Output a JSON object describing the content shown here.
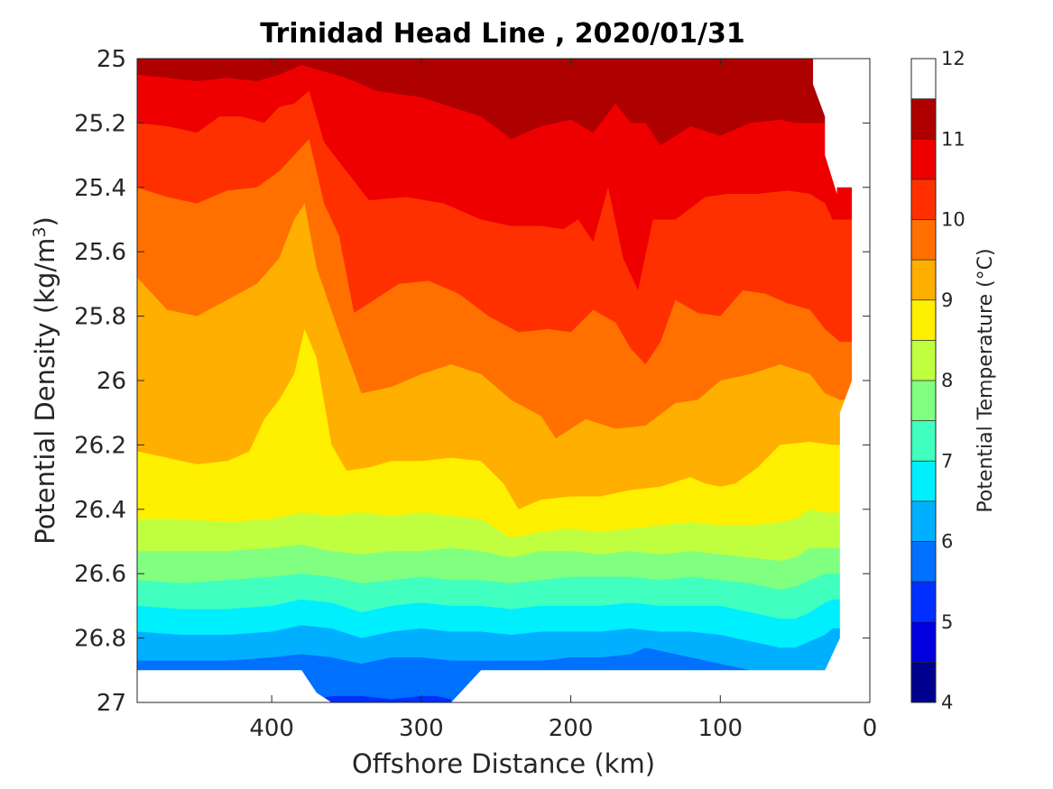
{
  "chart_data": {
    "type": "contourf",
    "title": "Trinidad Head Line , 2020/01/31",
    "xlabel": "Offshore Distance (km)",
    "ylabel_prefix": "Potential Density (kg/m",
    "ylabel_sup": "3",
    "ylabel_suffix": ")",
    "colorbar_label": "Potential Temperature (°C)",
    "xlim": [
      490,
      0
    ],
    "ylim": [
      25,
      27
    ],
    "y_reversed": true,
    "x_reversed": true,
    "xticks": [
      400,
      300,
      200,
      100,
      0
    ],
    "xtick_labels": [
      "400",
      "300",
      "200",
      "100",
      "0"
    ],
    "yticks": [
      25,
      25.2,
      25.4,
      25.6,
      25.8,
      26,
      26.2,
      26.4,
      26.6,
      26.8,
      27
    ],
    "ytick_labels": [
      "25",
      "25.2",
      "25.4",
      "25.6",
      "25.8",
      "26",
      "26.2",
      "26.4",
      "26.6",
      "26.8",
      "27"
    ],
    "colorbar_ticks": [
      4,
      5,
      6,
      7,
      8,
      9,
      10,
      11,
      12
    ],
    "colorbar_tick_labels": [
      "4",
      "5",
      "6",
      "7",
      "8",
      "9",
      "10",
      "11",
      "12"
    ],
    "levels": [
      4,
      4.5,
      5,
      5.5,
      6,
      6.5,
      7,
      7.5,
      8,
      8.5,
      9,
      9.5,
      10,
      10.5,
      11,
      11.5,
      12
    ],
    "colors": [
      "#00008f",
      "#0000df",
      "#0030ff",
      "#0070ff",
      "#00b0ff",
      "#00efff",
      "#40ffbf",
      "#80ff80",
      "#bfff40",
      "#ffef00",
      "#ffaf00",
      "#ff7000",
      "#ff3000",
      "#ef0000",
      "#af0000"
    ],
    "grid": false,
    "isotherms": [
      {
        "level": 11,
        "x": [
          490,
          460,
          440,
          420,
          400,
          380,
          360,
          340,
          320,
          300,
          280,
          260,
          240,
          220,
          200,
          180,
          160,
          140,
          120,
          110,
          100,
          80,
          60,
          40
        ],
        "y": [
          25.02,
          25.02,
          25.01,
          25.02,
          25.01,
          25.02,
          25.0,
          25.02,
          25.01,
          25.02,
          25.01,
          25.02,
          25.02,
          25.01,
          25.02,
          25.01,
          25.02,
          25.01,
          25.02,
          25.07,
          25.03,
          25.01,
          25.02,
          25.01
        ]
      },
      {
        "level": 10.5,
        "x": [
          490,
          470,
          450,
          430,
          410,
          395,
          380,
          365,
          350,
          330,
          300,
          260,
          240,
          220,
          200,
          185,
          170,
          160,
          150,
          140,
          120,
          100,
          80,
          60,
          50,
          40,
          35
        ],
        "y": [
          25.05,
          25.06,
          25.07,
          25.06,
          25.07,
          25.05,
          25.02,
          25.04,
          25.06,
          25.1,
          25.12,
          25.18,
          25.25,
          25.21,
          25.19,
          25.23,
          25.14,
          25.2,
          25.2,
          25.27,
          25.21,
          25.24,
          25.2,
          25.19,
          25.2,
          25.2,
          25.2
        ]
      },
      {
        "level": 10,
        "x": [
          490,
          470,
          450,
          435,
          420,
          405,
          395,
          385,
          375,
          365,
          350,
          335,
          310,
          285,
          260,
          240,
          220,
          205,
          195,
          185,
          175,
          165,
          155,
          145,
          130,
          110,
          95,
          75,
          55,
          40,
          30,
          25
        ],
        "y": [
          25.2,
          25.21,
          25.23,
          25.18,
          25.18,
          25.2,
          25.15,
          25.14,
          25.1,
          25.26,
          25.35,
          25.44,
          25.43,
          25.45,
          25.5,
          25.52,
          25.52,
          25.53,
          25.5,
          25.57,
          25.4,
          25.62,
          25.72,
          25.5,
          25.5,
          25.43,
          25.42,
          25.42,
          25.41,
          25.42,
          25.45,
          25.5
        ]
      },
      {
        "level": 9.5,
        "x": [
          490,
          470,
          450,
          430,
          410,
          395,
          385,
          375,
          365,
          355,
          345,
          335,
          315,
          295,
          275,
          255,
          235,
          215,
          200,
          185,
          170,
          160,
          150,
          140,
          130,
          115,
          100,
          85,
          70,
          55,
          40,
          30,
          20
        ],
        "y": [
          25.4,
          25.43,
          25.45,
          25.41,
          25.4,
          25.35,
          25.3,
          25.25,
          25.45,
          25.55,
          25.79,
          25.76,
          25.7,
          25.69,
          25.73,
          25.8,
          25.85,
          25.84,
          25.85,
          25.78,
          25.82,
          25.9,
          25.95,
          25.88,
          25.75,
          25.79,
          25.8,
          25.72,
          25.73,
          25.76,
          25.78,
          25.84,
          25.88
        ]
      },
      {
        "level": 9,
        "x": [
          490,
          470,
          450,
          430,
          410,
          395,
          385,
          378,
          370,
          355,
          340,
          320,
          300,
          280,
          260,
          240,
          220,
          210,
          190,
          170,
          150,
          130,
          115,
          100,
          80,
          60,
          40,
          30,
          20
        ],
        "y": [
          25.68,
          25.78,
          25.8,
          25.75,
          25.7,
          25.62,
          25.5,
          25.45,
          25.65,
          25.85,
          26.04,
          26.02,
          25.98,
          25.95,
          25.98,
          26.06,
          26.11,
          26.18,
          26.12,
          26.15,
          26.14,
          26.07,
          26.06,
          26.0,
          25.98,
          25.95,
          25.98,
          26.04,
          26.06
        ]
      },
      {
        "level": 8.5,
        "x": [
          490,
          470,
          450,
          430,
          415,
          405,
          395,
          385,
          378,
          370,
          360,
          350,
          335,
          320,
          300,
          280,
          260,
          245,
          235,
          220,
          200,
          180,
          160,
          140,
          120,
          110,
          100,
          90,
          75,
          60,
          40,
          25
        ],
        "y": [
          26.22,
          26.24,
          26.26,
          26.25,
          26.22,
          26.12,
          26.06,
          25.98,
          25.84,
          25.93,
          26.2,
          26.28,
          26.27,
          26.25,
          26.25,
          26.24,
          26.25,
          26.32,
          26.4,
          26.37,
          26.36,
          26.36,
          26.34,
          26.33,
          26.3,
          26.32,
          26.33,
          26.32,
          26.27,
          26.2,
          26.19,
          26.2
        ]
      },
      {
        "level": 8,
        "x": [
          490,
          460,
          430,
          400,
          380,
          360,
          340,
          320,
          300,
          280,
          260,
          240,
          220,
          200,
          180,
          160,
          140,
          120,
          100,
          80,
          60,
          50,
          40,
          30,
          25
        ],
        "y": [
          26.43,
          26.43,
          26.44,
          26.43,
          26.41,
          26.42,
          26.41,
          26.42,
          26.41,
          26.42,
          26.43,
          26.49,
          26.47,
          26.46,
          26.47,
          26.46,
          26.45,
          26.44,
          26.45,
          26.45,
          26.44,
          26.43,
          26.4,
          26.41,
          26.41
        ]
      },
      {
        "level": 7.5,
        "x": [
          490,
          460,
          430,
          400,
          380,
          360,
          340,
          320,
          300,
          280,
          260,
          240,
          220,
          200,
          180,
          160,
          140,
          120,
          100,
          80,
          60,
          50,
          40,
          30,
          25
        ],
        "y": [
          26.53,
          26.53,
          26.53,
          26.52,
          26.51,
          26.53,
          26.54,
          26.53,
          26.53,
          26.52,
          26.53,
          26.55,
          26.53,
          26.53,
          26.54,
          26.53,
          26.54,
          26.53,
          26.54,
          26.55,
          26.56,
          26.55,
          26.52,
          26.52,
          26.52
        ]
      },
      {
        "level": 7,
        "x": [
          490,
          460,
          430,
          400,
          380,
          360,
          340,
          320,
          300,
          280,
          260,
          240,
          220,
          200,
          180,
          160,
          140,
          120,
          100,
          80,
          60,
          50,
          40,
          30,
          25
        ],
        "y": [
          26.62,
          26.63,
          26.62,
          26.61,
          26.6,
          26.61,
          26.63,
          26.62,
          26.61,
          26.62,
          26.62,
          26.63,
          26.62,
          26.61,
          26.61,
          26.61,
          26.62,
          26.61,
          26.62,
          26.63,
          26.65,
          26.64,
          26.62,
          26.6,
          26.6
        ]
      },
      {
        "level": 6.5,
        "x": [
          490,
          460,
          430,
          400,
          380,
          360,
          340,
          320,
          300,
          280,
          260,
          240,
          220,
          200,
          180,
          160,
          140,
          120,
          100,
          80,
          60,
          50,
          40,
          30,
          25
        ],
        "y": [
          26.7,
          26.71,
          26.71,
          26.7,
          26.68,
          26.69,
          26.72,
          26.7,
          26.69,
          26.7,
          26.7,
          26.71,
          26.7,
          26.7,
          26.7,
          26.69,
          26.7,
          26.7,
          26.7,
          26.72,
          26.74,
          26.74,
          26.72,
          26.69,
          26.68
        ]
      },
      {
        "level": 6,
        "x": [
          490,
          460,
          430,
          400,
          380,
          360,
          340,
          320,
          300,
          280,
          260,
          240,
          220,
          200,
          180,
          160,
          140,
          120,
          100,
          80,
          60,
          50,
          40,
          30,
          25
        ],
        "y": [
          26.78,
          26.79,
          26.79,
          26.78,
          26.76,
          26.77,
          26.8,
          26.78,
          26.77,
          26.78,
          26.78,
          26.79,
          26.78,
          26.78,
          26.78,
          26.77,
          26.78,
          26.78,
          26.79,
          26.81,
          26.83,
          26.83,
          26.81,
          26.79,
          26.77
        ]
      },
      {
        "level": 5.5,
        "x": [
          490,
          460,
          430,
          400,
          380,
          360,
          340,
          320,
          300,
          280,
          260,
          240,
          220,
          200,
          180,
          160,
          150,
          140,
          120,
          100,
          80,
          60,
          50,
          40,
          30
        ],
        "y": [
          26.87,
          26.87,
          26.87,
          26.86,
          26.85,
          26.86,
          26.88,
          26.86,
          26.86,
          26.87,
          26.87,
          26.87,
          26.87,
          26.86,
          26.86,
          26.85,
          26.83,
          26.84,
          26.86,
          26.88,
          26.9,
          26.9,
          26.9,
          26.9,
          26.9
        ]
      },
      {
        "level": 5,
        "x": [
          370,
          360,
          340,
          320,
          300,
          290,
          280
        ],
        "y": [
          26.99,
          26.98,
          26.98,
          26.99,
          26.98,
          26.98,
          26.99
        ]
      }
    ],
    "bottom_x": [
      490,
      460,
      400,
      380,
      370,
      360,
      280,
      270,
      260,
      100,
      90,
      60,
      30
    ],
    "bottom_y": [
      26.9,
      26.9,
      26.9,
      26.9,
      26.97,
      27.0,
      27.0,
      26.95,
      26.9,
      26.9,
      26.9,
      26.9,
      26.9
    ],
    "right_x": [
      38,
      38,
      30,
      30,
      22,
      22,
      12,
      12,
      20,
      20,
      30
    ],
    "right_y": [
      25.0,
      25.08,
      25.18,
      25.3,
      25.42,
      25.4,
      25.4,
      26.0,
      26.1,
      26.8,
      26.9
    ]
  }
}
